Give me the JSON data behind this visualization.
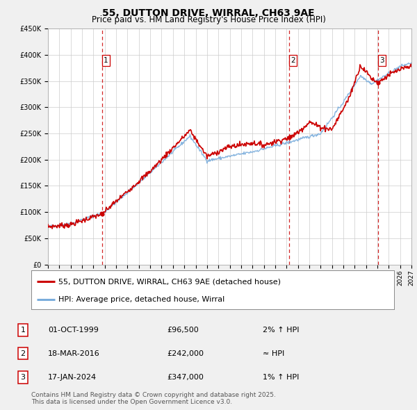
{
  "title": "55, DUTTON DRIVE, WIRRAL, CH63 9AE",
  "subtitle": "Price paid vs. HM Land Registry's House Price Index (HPI)",
  "ylim": [
    0,
    450000
  ],
  "yticks": [
    0,
    50000,
    100000,
    150000,
    200000,
    250000,
    300000,
    350000,
    400000,
    450000
  ],
  "ytick_labels": [
    "£0",
    "£50K",
    "£100K",
    "£150K",
    "£200K",
    "£250K",
    "£300K",
    "£350K",
    "£400K",
    "£450K"
  ],
  "xlim_start": 1995.0,
  "xlim_end": 2027.0,
  "background_color": "#f0f0f0",
  "plot_bg_color": "#ffffff",
  "grid_color": "#cccccc",
  "hpi_line_color": "#7aaddc",
  "price_line_color": "#cc0000",
  "sale_marker_color": "#cc0000",
  "sale_points": [
    {
      "year": 1999.75,
      "price": 96500,
      "label": "1"
    },
    {
      "year": 2016.21,
      "price": 242000,
      "label": "2"
    },
    {
      "year": 2024.04,
      "price": 347000,
      "label": "3"
    }
  ],
  "vline_color": "#cc0000",
  "legend_label_price": "55, DUTTON DRIVE, WIRRAL, CH63 9AE (detached house)",
  "legend_label_hpi": "HPI: Average price, detached house, Wirral",
  "table_rows": [
    {
      "num": "1",
      "date": "01-OCT-1999",
      "price": "£96,500",
      "rel": "2% ↑ HPI"
    },
    {
      "num": "2",
      "date": "18-MAR-2016",
      "price": "£242,000",
      "rel": "≈ HPI"
    },
    {
      "num": "3",
      "date": "17-JAN-2024",
      "price": "£347,000",
      "rel": "1% ↑ HPI"
    }
  ],
  "footnote": "Contains HM Land Registry data © Crown copyright and database right 2025.\nThis data is licensed under the Open Government Licence v3.0.",
  "title_fontsize": 10,
  "subtitle_fontsize": 8.5,
  "tick_fontsize": 7,
  "legend_fontsize": 8,
  "table_fontsize": 8,
  "footnote_fontsize": 6.5
}
